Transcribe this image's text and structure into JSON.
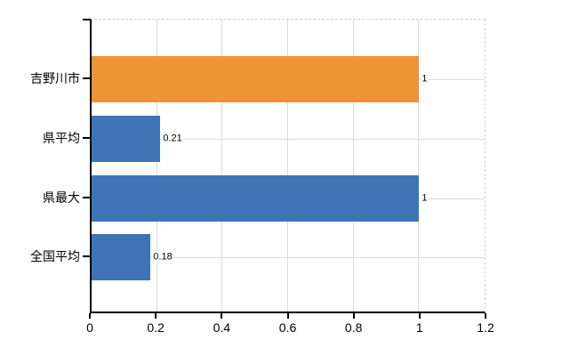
{
  "chart_data": {
    "type": "bar",
    "orientation": "horizontal",
    "title": "",
    "xlabel": "",
    "ylabel": "",
    "categories": [
      "吉野川市",
      "県平均",
      "県最大",
      "全国平均"
    ],
    "values": [
      1,
      0.21,
      1,
      0.18
    ],
    "value_labels": [
      "1",
      "0.21",
      "1",
      "0.18"
    ],
    "bar_colors": [
      "#ef9434",
      "#3e74b5",
      "#3e74b5",
      "#3e74b5"
    ],
    "xlim": [
      0,
      1.2
    ],
    "xticks": [
      0,
      0.2,
      0.4,
      0.6,
      0.8,
      1,
      1.2
    ],
    "xtick_labels": [
      "0",
      "0.2",
      "0.4",
      "0.6",
      "0.8",
      "1",
      "1.2"
    ],
    "grid": true,
    "legend": false,
    "colors": {
      "background": "#ffffff",
      "grid": "#d9dcd6",
      "axis": "#000000",
      "dashed_border": "#cfcfcf",
      "text": "#000000"
    }
  }
}
